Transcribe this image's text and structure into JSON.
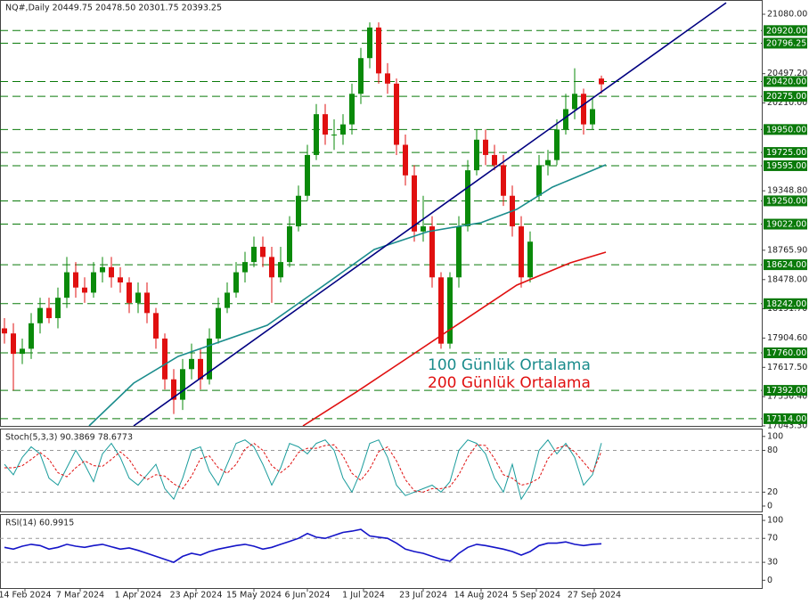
{
  "chart_data": [
    {
      "type": "candlestick",
      "title": "NQ#,Daily  20449.75 20478.50 20301.75 20393.25",
      "up_color": "#0a8a0a",
      "down_color": "#e01010",
      "x": [
        0,
        1,
        2,
        3,
        4,
        5,
        6,
        7,
        8,
        9,
        10,
        11,
        12,
        13,
        14,
        15,
        16,
        17,
        18,
        19,
        20,
        21,
        22,
        23,
        24,
        25,
        26,
        27,
        28,
        29,
        30,
        31,
        32,
        33,
        34,
        35,
        36,
        37,
        38,
        39,
        40,
        41,
        42,
        43,
        44,
        45,
        46,
        47,
        48,
        49,
        50,
        51,
        52,
        53,
        54,
        55,
        56,
        57,
        58,
        59,
        60,
        61,
        62,
        63,
        64,
        65,
        66,
        67
      ],
      "open": [
        18000,
        17950,
        17750,
        17800,
        18050,
        18200,
        18100,
        18300,
        18550,
        18400,
        18350,
        18550,
        18600,
        18500,
        18450,
        18250,
        18350,
        18150,
        17900,
        17500,
        17300,
        17600,
        17700,
        17500,
        17900,
        18200,
        18350,
        18550,
        18650,
        18800,
        18700,
        18500,
        18650,
        19000,
        19300,
        19700,
        20100,
        19900,
        19900,
        20000,
        20300,
        20650,
        20950,
        20500,
        20400,
        19800,
        19500,
        18950,
        19000,
        18500,
        17850,
        18500,
        19000,
        19550,
        19850,
        19700,
        19600,
        19300,
        19000,
        18500,
        19300,
        19600,
        19650,
        19950,
        20150,
        20300,
        20000,
        20449.75
      ],
      "high": [
        18100,
        18050,
        17900,
        18150,
        18300,
        18300,
        18400,
        18700,
        18650,
        18500,
        18650,
        18700,
        18700,
        18600,
        18500,
        18450,
        18450,
        18200,
        17950,
        17600,
        17700,
        17850,
        17800,
        18000,
        18300,
        18450,
        18650,
        18750,
        18900,
        18900,
        18800,
        18800,
        19100,
        19400,
        19800,
        20200,
        20200,
        20050,
        20100,
        20400,
        20750,
        21000,
        21000,
        20600,
        20450,
        19900,
        19600,
        19300,
        19100,
        18550,
        18550,
        19100,
        19650,
        19950,
        19950,
        19800,
        19700,
        19400,
        19100,
        18950,
        19700,
        19750,
        20050,
        20300,
        20550,
        20350,
        20250,
        20478.5
      ],
      "low": [
        17850,
        17392,
        17650,
        17700,
        17950,
        18050,
        18000,
        18200,
        18300,
        18250,
        18300,
        18450,
        18400,
        18350,
        18150,
        18150,
        18050,
        17800,
        17400,
        17160,
        17200,
        17500,
        17400,
        17450,
        17850,
        18150,
        18300,
        18450,
        18600,
        18600,
        18250,
        18450,
        18600,
        18950,
        19250,
        19650,
        19800,
        19750,
        19800,
        19900,
        20200,
        20550,
        20400,
        20300,
        19700,
        19400,
        18850,
        18850,
        18400,
        17800,
        17800,
        18400,
        18950,
        19500,
        19600,
        19550,
        19200,
        18900,
        18400,
        18450,
        19250,
        19500,
        19600,
        19900,
        20050,
        19900,
        19950,
        20301.75
      ],
      "close": [
        17950,
        17750,
        17800,
        18050,
        18200,
        18100,
        18300,
        18550,
        18400,
        18350,
        18550,
        18600,
        18500,
        18450,
        18250,
        18350,
        18150,
        17900,
        17500,
        17300,
        17600,
        17700,
        17500,
        17900,
        18200,
        18350,
        18550,
        18650,
        18800,
        18700,
        18500,
        18650,
        19000,
        19300,
        19700,
        20100,
        19900,
        19900,
        20000,
        20300,
        20650,
        20950,
        20500,
        20400,
        19800,
        19500,
        18950,
        19000,
        18500,
        17850,
        18500,
        19000,
        19550,
        19850,
        19700,
        19600,
        19300,
        19000,
        18500,
        18850,
        19600,
        19650,
        19950,
        20150,
        20300,
        20000,
        20150,
        20393.25
      ],
      "overlays": [
        {
          "name": "100 Günlük Ortalama",
          "color": "#1a8c8c",
          "x": [
            9.5,
            14.5,
            19.5,
            29.5,
            34.5,
            41.5,
            47.5,
            53.5,
            57.5,
            61.5,
            67.5
          ],
          "values": [
            17043.3,
            17463,
            17725,
            18031,
            18337,
            18773,
            18948,
            19036,
            19167,
            19385,
            19604
          ]
        },
        {
          "name": "200 Günlük Ortalama",
          "color": "#e01010",
          "x": [
            33.5,
            39.5,
            45.5,
            51.5,
            57.5,
            63.5,
            67.5
          ],
          "values": [
            17043.3,
            17376,
            17725,
            18075,
            18424,
            18642,
            18747
          ]
        },
        {
          "color": "#000080",
          "x": [
            14.5,
            81
          ],
          "values": [
            17043.3,
            21193
          ]
        }
      ],
      "xlim": [
        -0.5,
        85
      ],
      "ylim": [
        17043.3,
        21219.8
      ],
      "xticks": [
        {
          "value": 2.3,
          "label": "14 Feb 2024"
        },
        {
          "value": 8.5,
          "label": "7 Mar 2024"
        },
        {
          "value": 15,
          "label": "1 Apr 2024"
        },
        {
          "value": 21.5,
          "label": "23 Apr 2024"
        },
        {
          "value": 28,
          "label": "15 May 2024"
        },
        {
          "value": 34,
          "label": "6 Jun 2024"
        },
        {
          "value": 40.3,
          "label": "1 Jul 2024"
        },
        {
          "value": 47,
          "label": "23 Jul 2024"
        },
        {
          "value": 53.5,
          "label": "14 Aug 2024"
        },
        {
          "value": 59.7,
          "label": "5 Sep 2024"
        },
        {
          "value": 66.2,
          "label": "27 Sep 2024"
        }
      ],
      "yticks": [
        {
          "value": 21080,
          "label": "21080.00"
        },
        {
          "value": 20497.2,
          "label": "20497.20"
        },
        {
          "value": 20210,
          "label": "20210.00"
        },
        {
          "value": 19348.8,
          "label": "19348.80"
        },
        {
          "value": 18765.9,
          "label": "18765.90"
        },
        {
          "value": 18478,
          "label": "18478.00"
        },
        {
          "value": 18191.7,
          "label": "18191.70"
        },
        {
          "value": 17904.6,
          "label": "17904.60"
        },
        {
          "value": 17617.5,
          "label": "17617.50"
        },
        {
          "value": 17330.4,
          "label": "17330.40"
        },
        {
          "value": 17043.3,
          "label": "17043.30"
        }
      ],
      "levels": [
        {
          "value": 20920,
          "label": "20920.00"
        },
        {
          "value": 20796.25,
          "label": "20796.25"
        },
        {
          "value": 20420,
          "label": "20420.00"
        },
        {
          "value": 20275,
          "label": "20275.00"
        },
        {
          "value": 19950,
          "label": "19950.00"
        },
        {
          "value": 19725,
          "label": "19725.00"
        },
        {
          "value": 19595,
          "label": "19595.00"
        },
        {
          "value": 19250,
          "label": "19250.00"
        },
        {
          "value": 19022,
          "label": "19022.00"
        },
        {
          "value": 18624,
          "label": "18624.00"
        },
        {
          "value": 18242,
          "label": "18242.00"
        },
        {
          "value": 17760,
          "label": "17760.00"
        },
        {
          "value": 17392,
          "label": "17392.00"
        },
        {
          "value": 17114,
          "label": "17114.00"
        }
      ],
      "level_color": "#0a7a0a"
    },
    {
      "type": "line",
      "title": "Stoch(5,3,3) 90.3869 78.6773",
      "ylim": [
        -9,
        110
      ],
      "yticks": [
        0,
        20,
        80,
        100
      ],
      "levels": [
        20,
        80
      ],
      "series": [
        {
          "color": "#1a9c9c",
          "values": [
            60,
            45,
            70,
            85,
            75,
            40,
            30,
            55,
            80,
            60,
            35,
            75,
            90,
            70,
            40,
            30,
            45,
            60,
            25,
            10,
            40,
            80,
            85,
            50,
            30,
            60,
            90,
            95,
            85,
            60,
            30,
            55,
            90,
            85,
            75,
            90,
            95,
            80,
            40,
            20,
            50,
            90,
            95,
            70,
            30,
            15,
            20,
            25,
            30,
            20,
            35,
            80,
            95,
            90,
            75,
            40,
            20,
            60,
            10,
            30,
            80,
            95,
            75,
            90,
            70,
            30,
            45,
            90.3869
          ]
        },
        {
          "color": "#e01010",
          "dashed": true,
          "values": [
            55,
            55,
            58,
            67,
            77,
            67,
            48,
            42,
            55,
            65,
            58,
            57,
            67,
            78,
            67,
            47,
            38,
            45,
            43,
            32,
            25,
            43,
            68,
            72,
            55,
            47,
            60,
            82,
            90,
            80,
            58,
            48,
            58,
            77,
            83,
            83,
            87,
            88,
            72,
            47,
            37,
            53,
            78,
            85,
            65,
            38,
            22,
            20,
            25,
            25,
            28,
            45,
            70,
            88,
            87,
            68,
            45,
            40,
            30,
            33,
            40,
            68,
            83,
            87,
            78,
            63,
            48,
            78.6773
          ]
        }
      ]
    },
    {
      "type": "line",
      "title": "RSI(14) 60.9915",
      "ylim": [
        -13,
        109
      ],
      "yticks": [
        0,
        30,
        70,
        100
      ],
      "levels": [
        30,
        70
      ],
      "series": [
        {
          "color": "#1414c8",
          "values": [
            55,
            52,
            57,
            60,
            58,
            52,
            55,
            60,
            57,
            55,
            58,
            60,
            56,
            52,
            54,
            50,
            45,
            40,
            35,
            30,
            40,
            45,
            42,
            48,
            52,
            55,
            58,
            60,
            57,
            52,
            55,
            60,
            65,
            70,
            78,
            72,
            70,
            75,
            80,
            82,
            85,
            74,
            72,
            70,
            62,
            52,
            48,
            45,
            40,
            35,
            32,
            45,
            55,
            60,
            58,
            55,
            52,
            48,
            42,
            48,
            58,
            62,
            62,
            64,
            60,
            58,
            60,
            60.9915
          ]
        }
      ]
    }
  ]
}
